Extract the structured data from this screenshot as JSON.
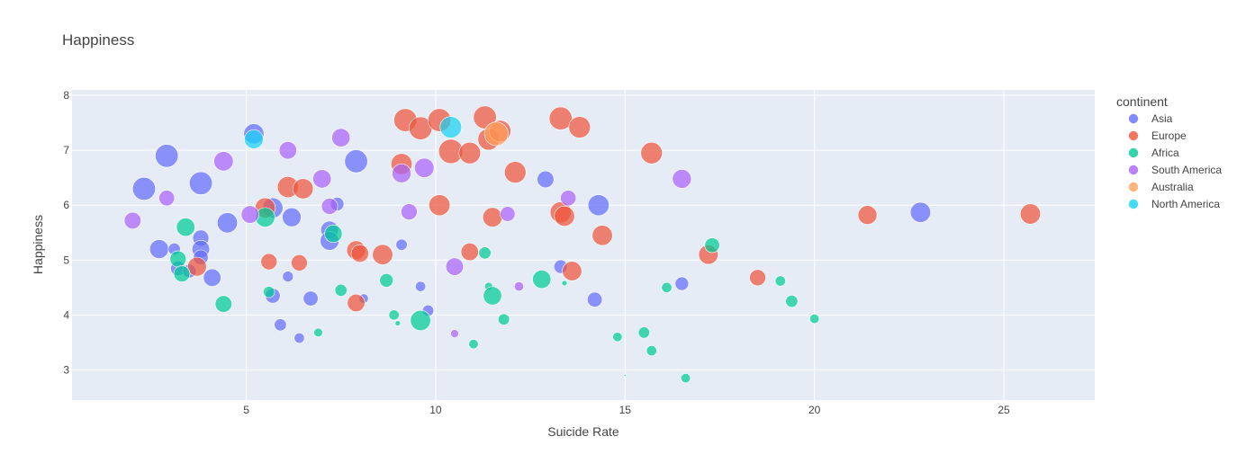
{
  "chart_data": {
    "type": "scatter",
    "title": "Happiness",
    "xlabel": "Suicide Rate",
    "ylabel": "Happiness",
    "xlim": [
      0.4,
      27.4
    ],
    "ylim": [
      2.45,
      8.1
    ],
    "x_ticks": [
      5,
      10,
      15,
      20,
      25
    ],
    "y_ticks": [
      3,
      4,
      5,
      6,
      7,
      8
    ],
    "grid": true,
    "legend_title": "continent",
    "legend_position": "right",
    "series": [
      {
        "name": "Asia",
        "color": "#636efa",
        "points": [
          {
            "x": 2.3,
            "y": 6.3,
            "s": 0.85
          },
          {
            "x": 2.9,
            "y": 6.9,
            "s": 0.85
          },
          {
            "x": 3.8,
            "y": 6.4,
            "s": 0.85
          },
          {
            "x": 2.7,
            "y": 5.2,
            "s": 0.7
          },
          {
            "x": 3.1,
            "y": 5.2,
            "s": 0.45
          },
          {
            "x": 3.8,
            "y": 5.4,
            "s": 0.6
          },
          {
            "x": 3.8,
            "y": 5.2,
            "s": 0.65
          },
          {
            "x": 3.8,
            "y": 5.05,
            "s": 0.55
          },
          {
            "x": 3.2,
            "y": 4.85,
            "s": 0.55
          },
          {
            "x": 3.5,
            "y": 4.8,
            "s": 0.5
          },
          {
            "x": 4.1,
            "y": 4.68,
            "s": 0.65
          },
          {
            "x": 4.5,
            "y": 5.68,
            "s": 0.75
          },
          {
            "x": 5.2,
            "y": 7.3,
            "s": 0.75
          },
          {
            "x": 5.7,
            "y": 5.95,
            "s": 0.75
          },
          {
            "x": 6.2,
            "y": 5.78,
            "s": 0.7
          },
          {
            "x": 5.7,
            "y": 4.35,
            "s": 0.55
          },
          {
            "x": 6.1,
            "y": 4.7,
            "s": 0.4
          },
          {
            "x": 5.9,
            "y": 3.82,
            "s": 0.45
          },
          {
            "x": 6.4,
            "y": 3.58,
            "s": 0.38
          },
          {
            "x": 6.7,
            "y": 4.3,
            "s": 0.55
          },
          {
            "x": 7.2,
            "y": 5.55,
            "s": 0.65
          },
          {
            "x": 7.2,
            "y": 5.35,
            "s": 0.7
          },
          {
            "x": 7.4,
            "y": 6.02,
            "s": 0.5
          },
          {
            "x": 7.9,
            "y": 6.8,
            "s": 0.85
          },
          {
            "x": 8.1,
            "y": 4.3,
            "s": 0.35
          },
          {
            "x": 9.1,
            "y": 5.28,
            "s": 0.42
          },
          {
            "x": 9.6,
            "y": 4.52,
            "s": 0.38
          },
          {
            "x": 9.8,
            "y": 4.08,
            "s": 0.42
          },
          {
            "x": 12.9,
            "y": 6.47,
            "s": 0.62
          },
          {
            "x": 13.3,
            "y": 4.88,
            "s": 0.5
          },
          {
            "x": 14.2,
            "y": 4.28,
            "s": 0.55
          },
          {
            "x": 14.3,
            "y": 6.0,
            "s": 0.78
          },
          {
            "x": 16.5,
            "y": 4.57,
            "s": 0.5
          },
          {
            "x": 22.8,
            "y": 5.87,
            "s": 0.75
          }
        ]
      },
      {
        "name": "Europe",
        "color": "#ef553b",
        "points": [
          {
            "x": 3.7,
            "y": 4.88,
            "s": 0.7
          },
          {
            "x": 5.5,
            "y": 5.95,
            "s": 0.75
          },
          {
            "x": 5.6,
            "y": 4.97,
            "s": 0.6
          },
          {
            "x": 6.1,
            "y": 6.33,
            "s": 0.78
          },
          {
            "x": 6.5,
            "y": 6.3,
            "s": 0.75
          },
          {
            "x": 6.4,
            "y": 4.95,
            "s": 0.6
          },
          {
            "x": 7.9,
            "y": 5.18,
            "s": 0.7
          },
          {
            "x": 8.0,
            "y": 5.12,
            "s": 0.65
          },
          {
            "x": 7.9,
            "y": 4.22,
            "s": 0.65
          },
          {
            "x": 8.6,
            "y": 5.1,
            "s": 0.75
          },
          {
            "x": 9.1,
            "y": 6.75,
            "s": 0.78
          },
          {
            "x": 9.2,
            "y": 7.55,
            "s": 0.85
          },
          {
            "x": 9.6,
            "y": 7.4,
            "s": 0.85
          },
          {
            "x": 10.1,
            "y": 7.55,
            "s": 0.85
          },
          {
            "x": 10.1,
            "y": 6.0,
            "s": 0.78
          },
          {
            "x": 10.4,
            "y": 6.98,
            "s": 0.9
          },
          {
            "x": 10.9,
            "y": 6.95,
            "s": 0.8
          },
          {
            "x": 10.9,
            "y": 5.15,
            "s": 0.65
          },
          {
            "x": 11.3,
            "y": 7.6,
            "s": 0.85
          },
          {
            "x": 11.4,
            "y": 7.2,
            "s": 0.8
          },
          {
            "x": 11.5,
            "y": 5.78,
            "s": 0.72
          },
          {
            "x": 11.7,
            "y": 7.35,
            "s": 0.8
          },
          {
            "x": 12.1,
            "y": 6.6,
            "s": 0.8
          },
          {
            "x": 13.3,
            "y": 7.58,
            "s": 0.85
          },
          {
            "x": 13.3,
            "y": 5.87,
            "s": 0.78
          },
          {
            "x": 13.4,
            "y": 5.8,
            "s": 0.75
          },
          {
            "x": 13.6,
            "y": 4.8,
            "s": 0.72
          },
          {
            "x": 13.8,
            "y": 7.42,
            "s": 0.8
          },
          {
            "x": 14.4,
            "y": 5.45,
            "s": 0.75
          },
          {
            "x": 15.7,
            "y": 6.95,
            "s": 0.8
          },
          {
            "x": 17.2,
            "y": 5.1,
            "s": 0.72
          },
          {
            "x": 18.5,
            "y": 4.68,
            "s": 0.6
          },
          {
            "x": 21.4,
            "y": 5.82,
            "s": 0.7
          },
          {
            "x": 25.7,
            "y": 5.84,
            "s": 0.75
          }
        ]
      },
      {
        "name": "Africa",
        "color": "#00cc96",
        "points": [
          {
            "x": 3.2,
            "y": 5.02,
            "s": 0.6
          },
          {
            "x": 3.3,
            "y": 4.75,
            "s": 0.6
          },
          {
            "x": 3.4,
            "y": 5.6,
            "s": 0.68
          },
          {
            "x": 4.4,
            "y": 4.2,
            "s": 0.62
          },
          {
            "x": 5.5,
            "y": 5.78,
            "s": 0.72
          },
          {
            "x": 5.6,
            "y": 4.42,
            "s": 0.42
          },
          {
            "x": 6.9,
            "y": 3.68,
            "s": 0.33
          },
          {
            "x": 7.3,
            "y": 5.48,
            "s": 0.65
          },
          {
            "x": 7.5,
            "y": 4.45,
            "s": 0.45
          },
          {
            "x": 8.7,
            "y": 4.63,
            "s": 0.5
          },
          {
            "x": 8.9,
            "y": 4.0,
            "s": 0.38
          },
          {
            "x": 9.0,
            "y": 3.85,
            "s": 0.2
          },
          {
            "x": 9.6,
            "y": 3.9,
            "s": 0.75
          },
          {
            "x": 11.0,
            "y": 3.47,
            "s": 0.35
          },
          {
            "x": 11.3,
            "y": 5.13,
            "s": 0.45
          },
          {
            "x": 11.4,
            "y": 4.52,
            "s": 0.3
          },
          {
            "x": 11.5,
            "y": 4.35,
            "s": 0.68
          },
          {
            "x": 11.8,
            "y": 3.92,
            "s": 0.42
          },
          {
            "x": 12.8,
            "y": 4.65,
            "s": 0.68
          },
          {
            "x": 13.4,
            "y": 4.58,
            "s": 0.2
          },
          {
            "x": 14.8,
            "y": 3.6,
            "s": 0.35
          },
          {
            "x": 15.0,
            "y": 2.9,
            "s": 0.08
          },
          {
            "x": 15.5,
            "y": 3.68,
            "s": 0.42
          },
          {
            "x": 15.7,
            "y": 3.35,
            "s": 0.38
          },
          {
            "x": 16.1,
            "y": 4.5,
            "s": 0.38
          },
          {
            "x": 16.6,
            "y": 2.85,
            "s": 0.35
          },
          {
            "x": 17.3,
            "y": 5.27,
            "s": 0.55
          },
          {
            "x": 19.1,
            "y": 4.62,
            "s": 0.38
          },
          {
            "x": 19.4,
            "y": 4.25,
            "s": 0.45
          },
          {
            "x": 20.0,
            "y": 3.93,
            "s": 0.35
          }
        ]
      },
      {
        "name": "South America",
        "color": "#ab63fa",
        "points": [
          {
            "x": 2.0,
            "y": 5.72,
            "s": 0.62
          },
          {
            "x": 2.9,
            "y": 6.13,
            "s": 0.58
          },
          {
            "x": 4.4,
            "y": 6.8,
            "s": 0.72
          },
          {
            "x": 5.1,
            "y": 5.83,
            "s": 0.65
          },
          {
            "x": 6.1,
            "y": 7.0,
            "s": 0.65
          },
          {
            "x": 7.0,
            "y": 6.48,
            "s": 0.68
          },
          {
            "x": 7.2,
            "y": 5.98,
            "s": 0.6
          },
          {
            "x": 7.5,
            "y": 7.23,
            "s": 0.68
          },
          {
            "x": 9.1,
            "y": 6.58,
            "s": 0.7
          },
          {
            "x": 9.3,
            "y": 5.88,
            "s": 0.6
          },
          {
            "x": 9.7,
            "y": 6.68,
            "s": 0.72
          },
          {
            "x": 10.5,
            "y": 4.88,
            "s": 0.65
          },
          {
            "x": 10.5,
            "y": 3.66,
            "s": 0.3
          },
          {
            "x": 11.9,
            "y": 5.84,
            "s": 0.55
          },
          {
            "x": 12.2,
            "y": 4.52,
            "s": 0.35
          },
          {
            "x": 13.5,
            "y": 6.13,
            "s": 0.58
          },
          {
            "x": 16.5,
            "y": 6.48,
            "s": 0.7
          }
        ]
      },
      {
        "name": "Australia",
        "color": "#ffa15a",
        "points": [
          {
            "x": 11.6,
            "y": 7.3,
            "s": 0.88
          }
        ]
      },
      {
        "name": "North America",
        "color": "#19d3f3",
        "points": [
          {
            "x": 5.2,
            "y": 7.2,
            "s": 0.7
          },
          {
            "x": 10.4,
            "y": 7.42,
            "s": 0.8
          }
        ]
      }
    ]
  }
}
